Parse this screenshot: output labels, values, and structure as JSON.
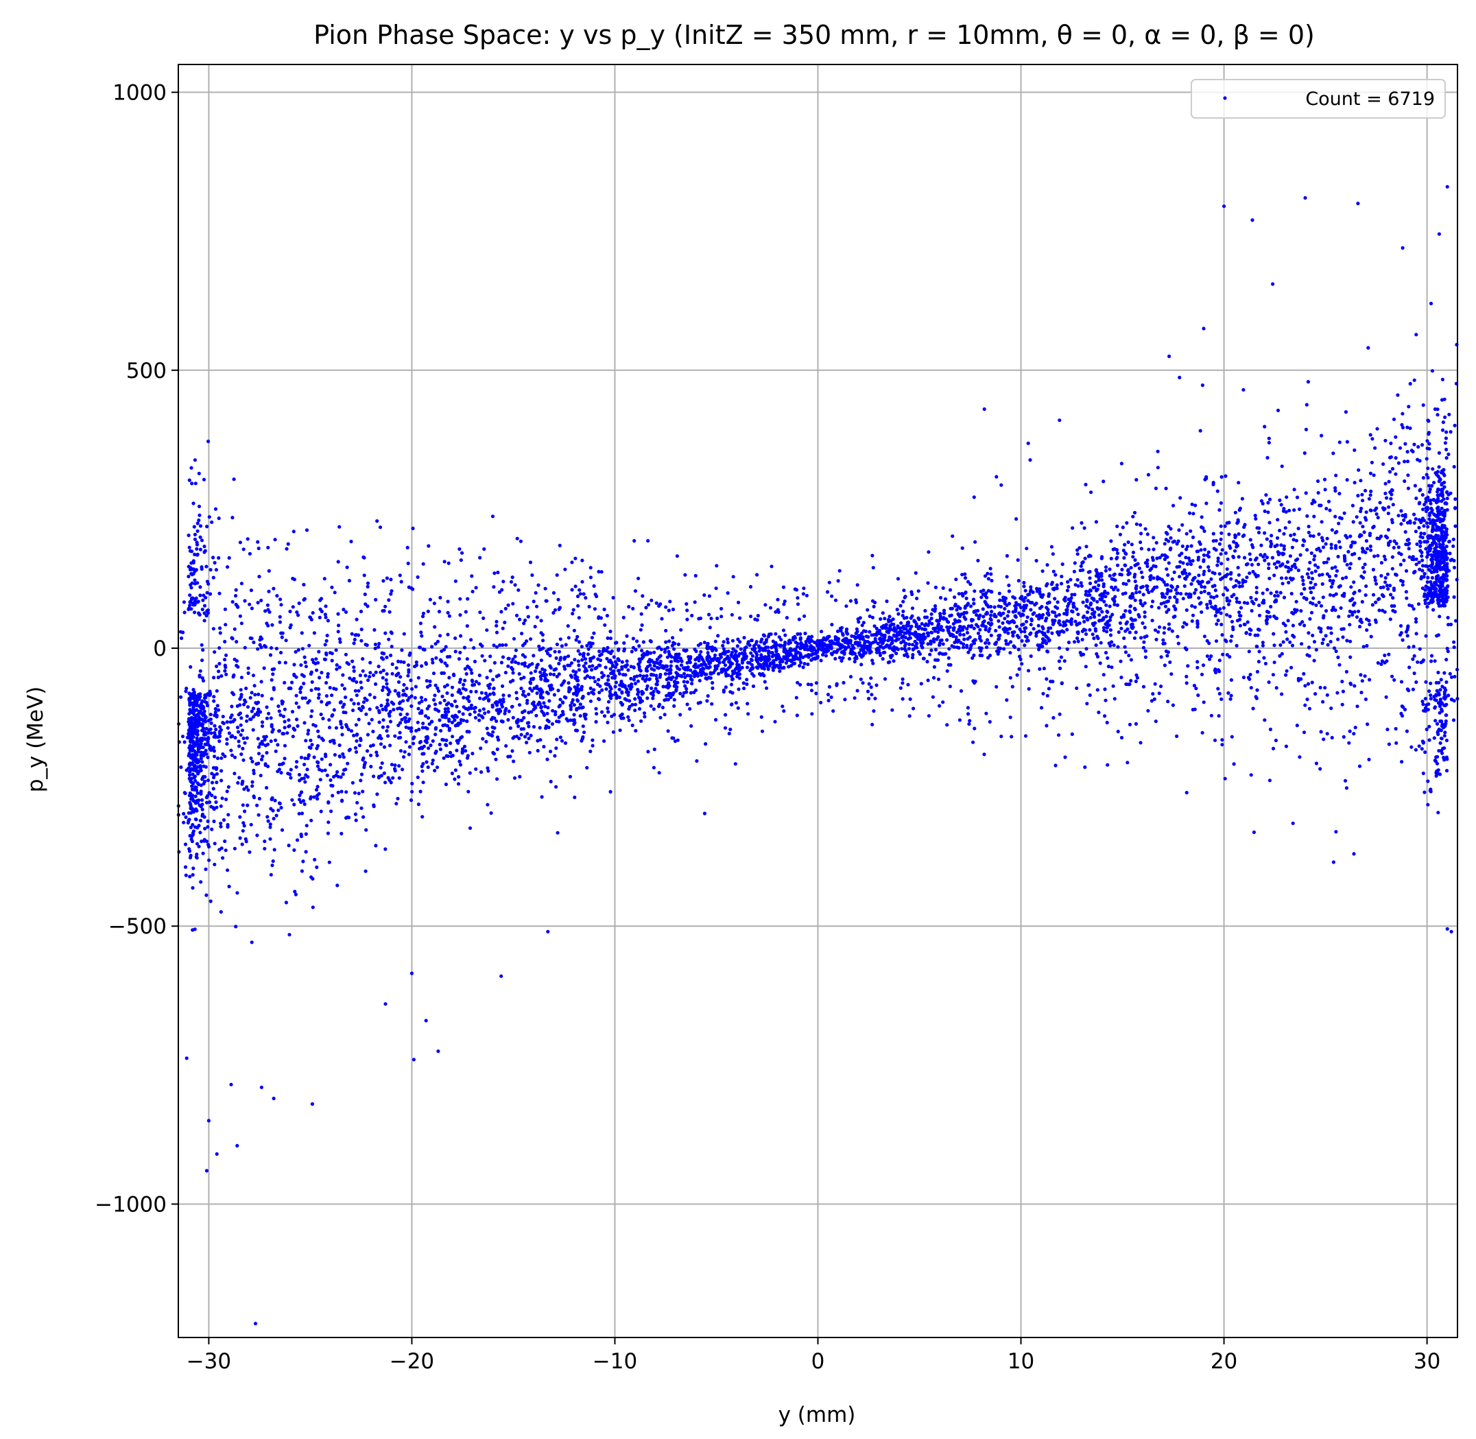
{
  "chart_data": {
    "type": "scatter",
    "title": "Pion Phase Space: y vs p_y (InitZ = 350 mm, r = 10mm, θ = 0, α = 0, β = 0)",
    "xlabel": "y (mm)",
    "ylabel": "p_y (MeV)",
    "xlim": [
      -31.5,
      31.5
    ],
    "ylim": [
      -1240,
      1050
    ],
    "xticks": [
      -30,
      -20,
      -10,
      0,
      10,
      20,
      30
    ],
    "xtick_labels": [
      "−30",
      "−20",
      "−10",
      "0",
      "10",
      "20",
      "30"
    ],
    "yticks": [
      -1000,
      -500,
      0,
      500,
      1000
    ],
    "ytick_labels": [
      "−1000",
      "−500",
      "0",
      "500",
      "1000"
    ],
    "grid": true,
    "legend_position": "top-right",
    "series": [
      {
        "name": "Count = 6719",
        "color": "#0000ff",
        "marker": "dot",
        "count": 6719
      }
    ],
    "outliers": {
      "x": [
        -30.1,
        -29.6,
        -27.4,
        -26.8,
        -24.9,
        -28.9,
        -28.6,
        -30.0,
        -19.9,
        -19.3,
        -20.0,
        -18.7,
        -21.3,
        -15.6,
        -13.3,
        -27.7,
        8.2,
        11.9,
        20.0,
        21.4,
        24.0,
        26.6,
        17.3,
        19.0,
        22.4,
        28.8,
        31.0,
        30.6,
        30.2,
        25.4,
        26.4,
        23.4,
        31.0,
        31.2
      ],
      "y": [
        -940,
        -910,
        -790,
        -810,
        -820,
        -785,
        -895,
        -850,
        -740,
        -670,
        -585,
        -725,
        -640,
        -590,
        -510,
        -1215,
        430,
        410,
        795,
        770,
        810,
        800,
        525,
        575,
        655,
        720,
        830,
        745,
        620,
        -385,
        -370,
        -315,
        -505,
        -510
      ]
    }
  }
}
